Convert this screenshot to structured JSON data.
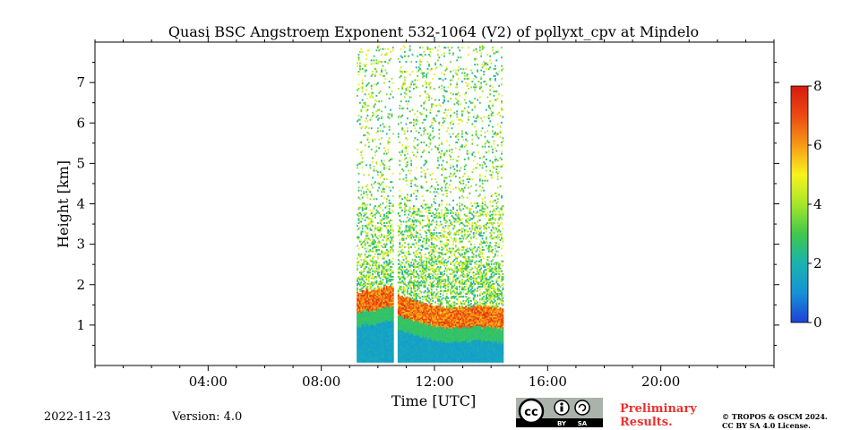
{
  "chart_data": {
    "type": "heatmap",
    "title": "Quasi BSC Angstroem Exponent 532-1064 (V2) of pollyxt_cpv at Mindelo",
    "xlabel": "Time [UTC]",
    "ylabel": "Height [km]",
    "xlim_hours": [
      0,
      24
    ],
    "ylim_km": [
      0,
      8
    ],
    "x_ticks": [
      {
        "value": 4,
        "label": "04:00"
      },
      {
        "value": 8,
        "label": "08:00"
      },
      {
        "value": 12,
        "label": "12:00"
      },
      {
        "value": 16,
        "label": "16:00"
      },
      {
        "value": 20,
        "label": "20:00"
      }
    ],
    "y_ticks": [
      {
        "value": 1,
        "label": "1"
      },
      {
        "value": 2,
        "label": "2"
      },
      {
        "value": 3,
        "label": "3"
      },
      {
        "value": 4,
        "label": "4"
      },
      {
        "value": 5,
        "label": "5"
      },
      {
        "value": 6,
        "label": "6"
      },
      {
        "value": 7,
        "label": "7"
      }
    ],
    "colorbar": {
      "range": [
        0,
        8
      ],
      "ticks": [
        {
          "value": 0,
          "label": "0"
        },
        {
          "value": 2,
          "label": "2"
        },
        {
          "value": 4,
          "label": "4"
        },
        {
          "value": 6,
          "label": "6"
        },
        {
          "value": 8,
          "label": "8"
        }
      ],
      "colormap": [
        "#1f3fd6",
        "#1593d6",
        "#18b3b0",
        "#3fc94a",
        "#a6e62a",
        "#f7f41c",
        "#f79a16",
        "#ec4a12",
        "#d61a0e"
      ]
    },
    "measurement_periods": [
      {
        "start_h": 9.25,
        "end_h": 10.55
      },
      {
        "start_h": 10.7,
        "end_h": 14.4
      }
    ],
    "boundary_layer": {
      "times_h": [
        9.25,
        10.5,
        10.7,
        11.5,
        12.5,
        13.5,
        14.4
      ],
      "top_km": [
        1.45,
        1.6,
        1.4,
        1.2,
        1.05,
        1.1,
        1.05
      ],
      "value_in_layer": 1.5,
      "value_at_top": 6.5
    }
  },
  "footer": {
    "date": "2022-11-23",
    "version": "Version: 4.0",
    "license_badge": {
      "cc": "cc",
      "by": "BY",
      "sa": "SA"
    },
    "preliminary_line1": "Preliminary",
    "preliminary_line2": "Results.",
    "copyright_line1": "© TROPOS & OSCM 2024.",
    "copyright_line2": "CC BY SA 4.0 License."
  }
}
